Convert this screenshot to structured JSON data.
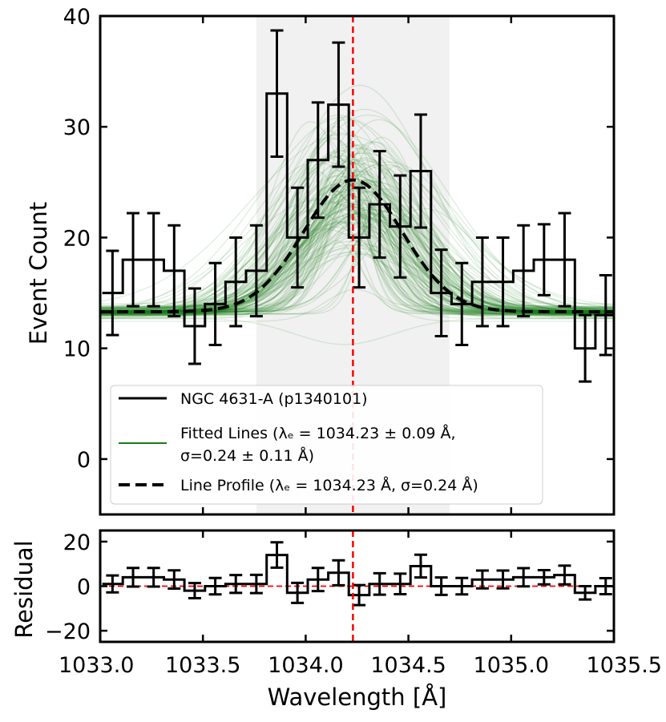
{
  "chart_data": [
    {
      "type": "line",
      "panel": "main",
      "ylabel": "Event Count",
      "xlim": [
        1033.0,
        1035.5
      ],
      "ylim": [
        -5,
        40
      ],
      "yticks": [
        0,
        10,
        20,
        30,
        40
      ],
      "grid": false,
      "shaded_region": [
        1033.76,
        1034.7
      ],
      "center_line": 1034.23,
      "center_line_color": "#ff0000",
      "bin_width": 0.1,
      "series": [
        {
          "name": "NGC 4631-A (p1340101)",
          "style": "step-with-errorbars",
          "color": "#000000",
          "x": [
            1033.06,
            1033.16,
            1033.26,
            1033.36,
            1033.46,
            1033.56,
            1033.66,
            1033.76,
            1033.86,
            1033.96,
            1034.06,
            1034.16,
            1034.26,
            1034.36,
            1034.46,
            1034.56,
            1034.66,
            1034.76,
            1034.86,
            1034.96,
            1035.06,
            1035.16,
            1035.26,
            1035.36,
            1035.46
          ],
          "values": [
            15,
            18,
            18,
            17,
            12,
            14,
            16,
            17,
            33,
            20,
            27,
            32,
            20,
            23,
            21,
            26,
            15,
            14,
            16,
            16,
            17,
            18,
            18,
            10,
            13
          ],
          "errors": [
            3.8,
            4.2,
            4.2,
            4.1,
            3.4,
            3.7,
            4.0,
            4.1,
            5.7,
            4.5,
            5.2,
            5.6,
            4.5,
            4.8,
            4.6,
            5.1,
            3.9,
            3.7,
            4.0,
            4.0,
            4.1,
            3.2,
            4.2,
            3.0,
            3.6
          ]
        },
        {
          "name": "Fitted Lines (λₑ = 1034.23 ± 0.09 Å, σ=0.24 ± 0.11 Å)",
          "style": "ensemble",
          "color": "#1a7a1a",
          "samples": 150,
          "center_mean": 1034.23,
          "center_sd": 0.09,
          "sigma_mean": 0.24,
          "sigma_sd": 0.11,
          "baseline": 13.3,
          "amplitude": 11.9
        },
        {
          "name": "Line Profile (λₑ = 1034.23 Å, σ=0.24 Å)",
          "style": "dashed",
          "color": "#000000",
          "center": 1034.23,
          "sigma": 0.24,
          "baseline": 13.3,
          "amplitude": 11.9
        }
      ],
      "legend_position": "lower-left"
    },
    {
      "type": "line",
      "panel": "residual",
      "xlabel": "Wavelength [Å]",
      "ylabel": "Residual",
      "xlim": [
        1033.0,
        1035.5
      ],
      "ylim": [
        -25,
        25
      ],
      "yticks": [
        -20,
        0,
        20
      ],
      "xticks": [
        1033.0,
        1033.5,
        1034.0,
        1034.5,
        1035.0,
        1035.5
      ],
      "zero_line_color": "#ff0000",
      "series": [
        {
          "name": "Residual",
          "style": "step-with-errorbars",
          "color": "#000000",
          "x": [
            1033.06,
            1033.16,
            1033.26,
            1033.36,
            1033.46,
            1033.56,
            1033.66,
            1033.76,
            1033.86,
            1033.96,
            1034.06,
            1034.16,
            1034.26,
            1034.36,
            1034.46,
            1034.56,
            1034.66,
            1034.76,
            1034.86,
            1034.96,
            1035.06,
            1035.16,
            1035.26,
            1035.36,
            1035.46
          ],
          "values": [
            1,
            4,
            4,
            3,
            -2,
            0,
            1,
            1,
            14,
            -3,
            3,
            6,
            -4,
            1,
            1,
            9,
            0,
            0,
            3,
            3,
            4,
            4,
            5,
            -3,
            0
          ],
          "errors": [
            3.8,
            4.2,
            4.2,
            4.1,
            3.4,
            3.7,
            4.0,
            4.1,
            5.7,
            4.5,
            5.2,
            5.6,
            4.5,
            4.8,
            4.6,
            5.1,
            3.9,
            3.7,
            4.0,
            4.0,
            4.1,
            3.2,
            4.2,
            3.0,
            3.6
          ]
        }
      ]
    }
  ],
  "legend": {
    "entries": [
      {
        "label": "NGC 4631-A (p1340101)"
      },
      {
        "label": "Fitted Lines (λₑ = 1034.23 ± 0.09 Å,",
        "label_line2": "σ=0.24  ± 0.11 Å)"
      },
      {
        "label": "Line Profile (λₑ = 1034.23 Å, σ=0.24 Å)"
      }
    ]
  }
}
